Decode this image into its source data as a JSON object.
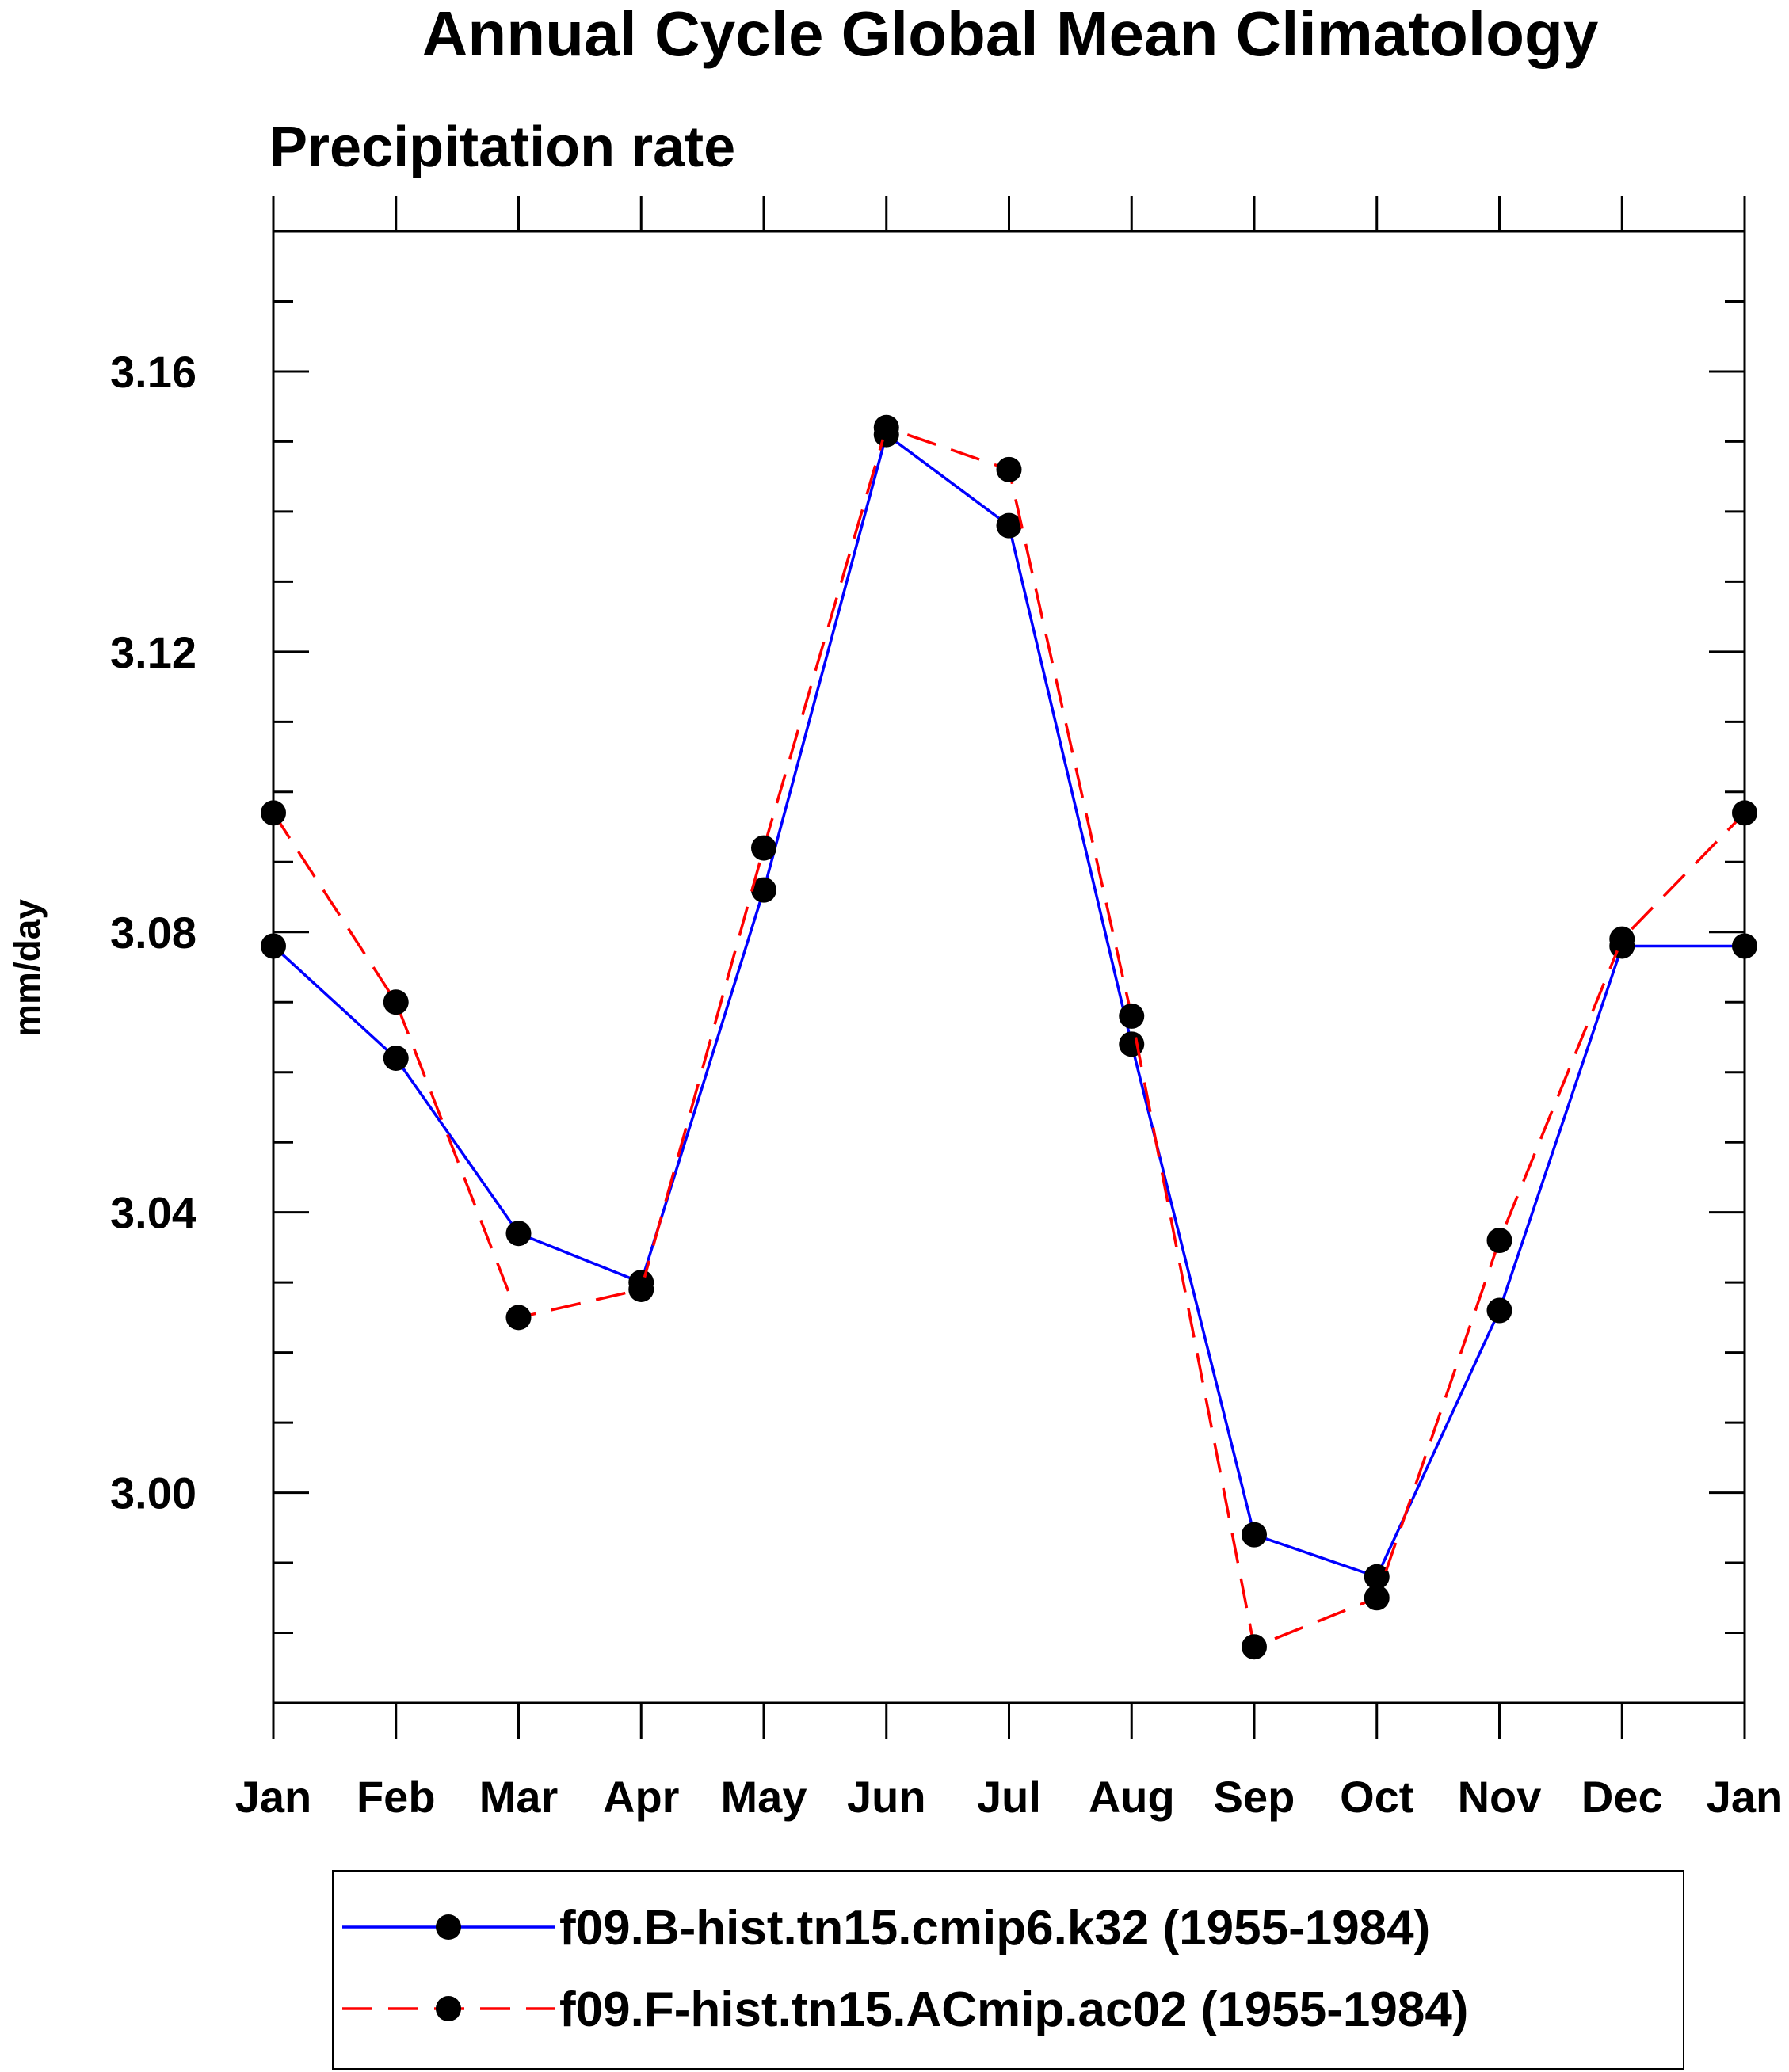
{
  "chart_data": {
    "type": "line",
    "title": "Annual Cycle Global Mean Climatology",
    "subtitle": "Precipitation rate",
    "xlabel": "",
    "ylabel": "mm/day",
    "categories": [
      "Jan",
      "Feb",
      "Mar",
      "Apr",
      "May",
      "Jun",
      "Jul",
      "Aug",
      "Sep",
      "Oct",
      "Nov",
      "Dec",
      "Jan"
    ],
    "ylim": [
      2.97,
      3.18
    ],
    "yticks": [
      "3.00",
      "3.04",
      "3.08",
      "3.12",
      "3.16"
    ],
    "ytick_values": [
      3.0,
      3.04,
      3.08,
      3.12,
      3.16
    ],
    "grid": false,
    "legend_position": "bottom",
    "series": [
      {
        "name": "f09.B-hist.tn15.cmip6.k32 (1955-1984)",
        "color": "#0000ff",
        "line_style": "solid",
        "marker": "filled-circle",
        "values": [
          3.078,
          3.062,
          3.037,
          3.03,
          3.086,
          3.151,
          3.138,
          3.064,
          2.994,
          2.988,
          3.026,
          3.078,
          3.078
        ]
      },
      {
        "name": "f09.F-hist.tn15.ACmip.ac02 (1955-1984)",
        "color": "#ff0000",
        "line_style": "dashed",
        "marker": "filled-circle",
        "values": [
          3.097,
          3.07,
          3.025,
          3.029,
          3.092,
          3.152,
          3.146,
          3.068,
          2.978,
          2.985,
          3.036,
          3.079,
          3.097
        ]
      }
    ]
  }
}
